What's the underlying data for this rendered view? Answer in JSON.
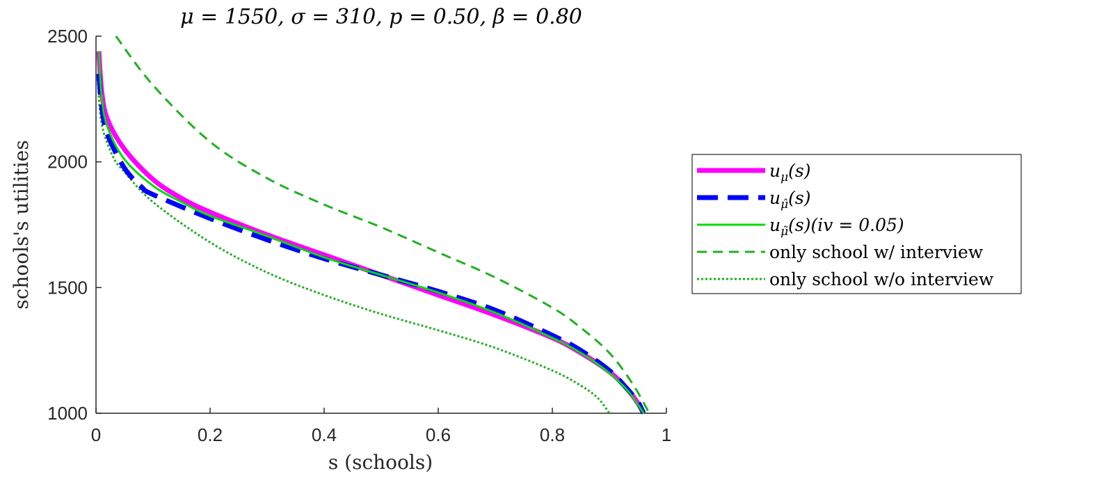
{
  "chart_data": {
    "type": "line",
    "title": "μ = 1550, σ = 310, p = 0.50, β = 0.80",
    "xlabel": "s (schools)",
    "ylabel": "schools's utilities",
    "xlim": [
      0,
      1
    ],
    "ylim": [
      1000,
      2500
    ],
    "xticks": [
      0,
      0.2,
      0.4,
      0.6,
      0.8,
      1
    ],
    "xtick_labels": [
      "0",
      "0.2",
      "0.4",
      "0.6",
      "0.8",
      "1"
    ],
    "yticks": [
      1000,
      1500,
      2000,
      2500
    ],
    "ytick_labels": [
      "1000",
      "1500",
      "2000",
      "2500"
    ],
    "grid": false,
    "legend_position": "outside-right",
    "series": [
      {
        "name": "u_μ(s)",
        "color": "#ff00ff",
        "style": "solid-thick",
        "points": [
          [
            0.005,
            2440
          ],
          [
            0.01,
            2280
          ],
          [
            0.02,
            2170
          ],
          [
            0.05,
            2050
          ],
          [
            0.1,
            1930
          ],
          [
            0.15,
            1855
          ],
          [
            0.2,
            1800
          ],
          [
            0.3,
            1710
          ],
          [
            0.4,
            1630
          ],
          [
            0.5,
            1550
          ],
          [
            0.6,
            1470
          ],
          [
            0.7,
            1390
          ],
          [
            0.8,
            1300
          ],
          [
            0.85,
            1240
          ],
          [
            0.9,
            1165
          ],
          [
            0.93,
            1100
          ],
          [
            0.95,
            1040
          ],
          [
            0.96,
            1000
          ]
        ]
      },
      {
        "name": "u_μ̂(s)",
        "color": "#0000ff",
        "style": "dashed-thick",
        "points": [
          [
            0.005,
            2350
          ],
          [
            0.01,
            2220
          ],
          [
            0.02,
            2110
          ],
          [
            0.05,
            1975
          ],
          [
            0.08,
            1900
          ],
          [
            0.1,
            1870
          ],
          [
            0.2,
            1775
          ],
          [
            0.3,
            1690
          ],
          [
            0.4,
            1615
          ],
          [
            0.5,
            1550
          ],
          [
            0.6,
            1485
          ],
          [
            0.7,
            1410
          ],
          [
            0.8,
            1310
          ],
          [
            0.85,
            1250
          ],
          [
            0.9,
            1170
          ],
          [
            0.93,
            1100
          ],
          [
            0.95,
            1045
          ],
          [
            0.96,
            1000
          ]
        ]
      },
      {
        "name": "u_μ̃(s)(iv = 0.05)",
        "color": "#00dd00",
        "style": "solid",
        "points": [
          [
            0.005,
            2440
          ],
          [
            0.01,
            2260
          ],
          [
            0.02,
            2140
          ],
          [
            0.05,
            2010
          ],
          [
            0.1,
            1905
          ],
          [
            0.15,
            1840
          ],
          [
            0.2,
            1785
          ],
          [
            0.3,
            1705
          ],
          [
            0.4,
            1620
          ],
          [
            0.5,
            1550
          ],
          [
            0.6,
            1480
          ],
          [
            0.7,
            1400
          ],
          [
            0.8,
            1300
          ],
          [
            0.85,
            1240
          ],
          [
            0.9,
            1160
          ],
          [
            0.93,
            1095
          ],
          [
            0.95,
            1035
          ],
          [
            0.96,
            1000
          ]
        ]
      },
      {
        "name": "only school w/ interview",
        "color": "#1fb11f",
        "style": "dashed",
        "points": [
          [
            0.035,
            2500
          ],
          [
            0.1,
            2305
          ],
          [
            0.2,
            2080
          ],
          [
            0.3,
            1935
          ],
          [
            0.4,
            1830
          ],
          [
            0.5,
            1740
          ],
          [
            0.6,
            1640
          ],
          [
            0.7,
            1540
          ],
          [
            0.8,
            1420
          ],
          [
            0.85,
            1340
          ],
          [
            0.9,
            1240
          ],
          [
            0.94,
            1120
          ],
          [
            0.97,
            1000
          ]
        ]
      },
      {
        "name": "only school w/o interview",
        "color": "#1fb11f",
        "style": "dotted",
        "points": [
          [
            0.003,
            2330
          ],
          [
            0.01,
            2150
          ],
          [
            0.03,
            2020
          ],
          [
            0.05,
            1960
          ],
          [
            0.1,
            1840
          ],
          [
            0.2,
            1680
          ],
          [
            0.3,
            1560
          ],
          [
            0.4,
            1470
          ],
          [
            0.5,
            1395
          ],
          [
            0.6,
            1330
          ],
          [
            0.7,
            1260
          ],
          [
            0.8,
            1170
          ],
          [
            0.85,
            1110
          ],
          [
            0.88,
            1060
          ],
          [
            0.9,
            1000
          ]
        ]
      }
    ]
  },
  "legend": {
    "entries": [
      {
        "base": "u",
        "sub": "μ",
        "tail": "(s)"
      },
      {
        "base": "u",
        "sub": "μ̂",
        "tail": "(s)"
      },
      {
        "base": "u",
        "sub": "μ̃",
        "tail": "(s)(iv = 0.05)"
      },
      {
        "base": "only school w/ interview",
        "sub": "",
        "tail": ""
      },
      {
        "base": "only school w/o interview",
        "sub": "",
        "tail": ""
      }
    ]
  }
}
